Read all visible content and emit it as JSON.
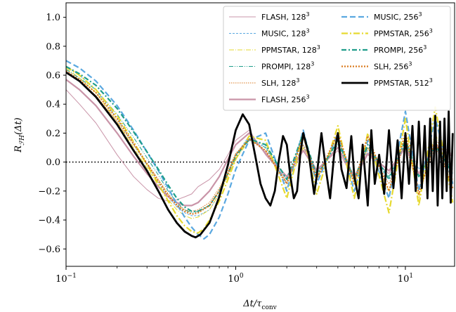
{
  "chart_data": {
    "type": "line",
    "title": "",
    "xlabel": "Δt/τ_conv",
    "ylabel": "R_FH(Δt)",
    "xscale": "log",
    "xlim": [
      0.1,
      19.5
    ],
    "ylim": [
      -0.72,
      1.1
    ],
    "xticks": [
      {
        "value": 0.1,
        "base": "10",
        "exp": "−1"
      },
      {
        "value": 1,
        "base": "10",
        "exp": "0"
      },
      {
        "value": 10,
        "base": "10",
        "exp": "1"
      }
    ],
    "yticks": [
      {
        "value": -0.6,
        "label": "−0.6"
      },
      {
        "value": -0.4,
        "label": "−0.4"
      },
      {
        "value": -0.2,
        "label": "−0.2"
      },
      {
        "value": 0.0,
        "label": "0.0"
      },
      {
        "value": 0.2,
        "label": "0.2"
      },
      {
        "value": 0.4,
        "label": "0.4"
      },
      {
        "value": 0.6,
        "label": "0.6"
      },
      {
        "value": 0.8,
        "label": "0.8"
      },
      {
        "value": 1.0,
        "label": "1.0"
      }
    ],
    "zero_line": {
      "y": 0.0,
      "style": "dotted",
      "color": "#000000"
    },
    "legend_position": "top-right",
    "series": [
      {
        "name": "FLASH, 128",
        "res_exp": "3",
        "color": "#c994a8",
        "dash": "",
        "width": 1,
        "x": [
          0.1,
          0.12,
          0.15,
          0.2,
          0.25,
          0.3,
          0.35,
          0.4,
          0.45,
          0.5,
          0.55,
          0.6,
          0.7,
          0.8,
          0.9,
          1.0,
          1.2,
          1.5,
          2.0,
          2.5,
          3.0,
          4.0,
          5.0,
          6.0,
          8.0,
          10.0,
          12.0,
          15.0,
          19.0
        ],
        "y": [
          0.5,
          0.4,
          0.27,
          0.05,
          -0.1,
          -0.19,
          -0.25,
          -0.27,
          -0.26,
          -0.24,
          -0.22,
          -0.17,
          -0.12,
          -0.05,
          0.05,
          0.15,
          0.22,
          0.05,
          -0.12,
          0.1,
          -0.05,
          0.08,
          -0.12,
          0.05,
          -0.08,
          0.12,
          -0.1,
          0.15,
          0.05
        ]
      },
      {
        "name": "MUSIC, 128",
        "res_exp": "3",
        "color": "#5aa8e0",
        "dash": "3,2",
        "width": 1,
        "x": [
          0.1,
          0.12,
          0.15,
          0.2,
          0.25,
          0.3,
          0.35,
          0.4,
          0.45,
          0.5,
          0.55,
          0.6,
          0.7,
          0.8,
          0.9,
          1.0,
          1.2,
          1.5,
          2.0,
          2.5,
          3.0,
          4.0,
          5.0,
          6.0,
          8.0,
          10.0,
          12.0,
          15.0,
          19.0
        ],
        "y": [
          0.66,
          0.6,
          0.5,
          0.3,
          0.12,
          -0.02,
          -0.14,
          -0.24,
          -0.31,
          -0.35,
          -0.37,
          -0.37,
          -0.33,
          -0.22,
          -0.08,
          0.05,
          0.18,
          0.1,
          -0.15,
          0.12,
          -0.08,
          0.15,
          -0.1,
          0.08,
          -0.12,
          0.15,
          -0.05,
          0.1,
          -0.08
        ]
      },
      {
        "name": "PPMSTAR, 128",
        "res_exp": "3",
        "color": "#e6d930",
        "dash": "7,2,1,2",
        "width": 1,
        "x": [
          0.1,
          0.12,
          0.15,
          0.2,
          0.25,
          0.3,
          0.35,
          0.4,
          0.45,
          0.5,
          0.55,
          0.6,
          0.7,
          0.8,
          0.9,
          1.0,
          1.2,
          1.5,
          2.0,
          2.5,
          3.0,
          4.0,
          5.0,
          6.0,
          8.0,
          10.0,
          12.0,
          15.0,
          19.0
        ],
        "y": [
          0.65,
          0.58,
          0.48,
          0.28,
          0.1,
          -0.04,
          -0.16,
          -0.26,
          -0.33,
          -0.37,
          -0.39,
          -0.38,
          -0.33,
          -0.22,
          -0.1,
          0.02,
          0.15,
          0.12,
          -0.18,
          0.1,
          -0.12,
          0.18,
          -0.15,
          0.1,
          -0.2,
          0.18,
          -0.25,
          0.2,
          -0.15
        ]
      },
      {
        "name": "PROMPI, 128",
        "res_exp": "3",
        "color": "#1f9d8a",
        "dash": "6,2,1,2,1,2",
        "width": 1,
        "x": [
          0.1,
          0.12,
          0.15,
          0.2,
          0.25,
          0.3,
          0.35,
          0.4,
          0.45,
          0.5,
          0.55,
          0.6,
          0.7,
          0.8,
          0.9,
          1.0,
          1.2,
          1.5,
          2.0,
          2.5,
          3.0,
          4.0,
          5.0,
          6.0,
          8.0,
          10.0,
          12.0,
          15.0,
          19.0
        ],
        "y": [
          0.64,
          0.58,
          0.5,
          0.33,
          0.17,
          0.03,
          -0.09,
          -0.2,
          -0.28,
          -0.33,
          -0.35,
          -0.34,
          -0.3,
          -0.2,
          -0.08,
          0.05,
          0.15,
          0.1,
          -0.12,
          0.18,
          -0.08,
          0.12,
          -0.1,
          0.1,
          -0.1,
          0.12,
          -0.08,
          0.1,
          -0.05
        ]
      },
      {
        "name": "SLH, 128",
        "res_exp": "3",
        "color": "#d97a1f",
        "dash": "1.5,1.5",
        "width": 1,
        "x": [
          0.1,
          0.12,
          0.15,
          0.2,
          0.25,
          0.3,
          0.35,
          0.4,
          0.45,
          0.5,
          0.55,
          0.6,
          0.7,
          0.8,
          0.9,
          1.0,
          1.2,
          1.5,
          2.0,
          2.5,
          3.0,
          4.0,
          5.0,
          6.0,
          8.0,
          10.0,
          12.0,
          15.0,
          19.0
        ],
        "y": [
          0.62,
          0.56,
          0.46,
          0.28,
          0.12,
          -0.01,
          -0.12,
          -0.22,
          -0.29,
          -0.33,
          -0.34,
          -0.33,
          -0.28,
          -0.18,
          -0.06,
          0.06,
          0.16,
          0.08,
          -0.14,
          0.12,
          -0.1,
          0.15,
          -0.12,
          0.1,
          -0.15,
          0.12,
          -0.18,
          0.1,
          -0.12
        ]
      },
      {
        "name": "FLASH, 256",
        "res_exp": "3",
        "color": "#c994a8",
        "dash": "",
        "width": 2.2,
        "x": [
          0.1,
          0.12,
          0.15,
          0.2,
          0.25,
          0.3,
          0.35,
          0.4,
          0.45,
          0.5,
          0.55,
          0.6,
          0.7,
          0.8,
          0.9,
          1.0,
          1.2,
          1.5,
          2.0,
          2.5,
          3.0,
          4.0,
          5.0,
          6.0,
          8.0,
          10.0,
          12.0,
          15.0,
          19.0
        ],
        "y": [
          0.57,
          0.5,
          0.39,
          0.2,
          0.04,
          -0.08,
          -0.17,
          -0.24,
          -0.28,
          -0.3,
          -0.3,
          -0.28,
          -0.2,
          -0.1,
          0.02,
          0.12,
          0.2,
          0.06,
          -0.1,
          0.08,
          -0.06,
          0.1,
          -0.1,
          0.06,
          -0.06,
          0.1,
          -0.08,
          0.12,
          0.04
        ]
      },
      {
        "name": "MUSIC, 256",
        "res_exp": "3",
        "color": "#5aa8e0",
        "dash": "8,4",
        "width": 2.2,
        "x": [
          0.1,
          0.12,
          0.15,
          0.2,
          0.25,
          0.3,
          0.35,
          0.4,
          0.45,
          0.5,
          0.55,
          0.6,
          0.65,
          0.7,
          0.8,
          0.9,
          1.0,
          1.2,
          1.5,
          2.0,
          2.5,
          3.0,
          4.0,
          5.0,
          6.0,
          8.0,
          10.0,
          12.0,
          15.0,
          19.0
        ],
        "y": [
          0.7,
          0.65,
          0.56,
          0.39,
          0.22,
          0.07,
          -0.06,
          -0.18,
          -0.29,
          -0.38,
          -0.45,
          -0.5,
          -0.53,
          -0.5,
          -0.38,
          -0.22,
          -0.05,
          0.15,
          0.2,
          -0.2,
          0.22,
          -0.15,
          0.2,
          -0.2,
          0.15,
          -0.25,
          0.35,
          -0.2,
          0.3,
          -0.15
        ]
      },
      {
        "name": "PPMSTAR, 256",
        "res_exp": "3",
        "color": "#e6d930",
        "dash": "9,3,2,3",
        "width": 2.2,
        "x": [
          0.1,
          0.12,
          0.15,
          0.2,
          0.25,
          0.3,
          0.35,
          0.4,
          0.45,
          0.5,
          0.55,
          0.6,
          0.65,
          0.7,
          0.8,
          0.9,
          1.0,
          1.2,
          1.5,
          2.0,
          2.5,
          3.0,
          4.0,
          5.0,
          6.0,
          8.0,
          10.0,
          12.0,
          15.0,
          19.0
        ],
        "y": [
          0.66,
          0.6,
          0.5,
          0.32,
          0.14,
          -0.02,
          -0.15,
          -0.27,
          -0.37,
          -0.44,
          -0.48,
          -0.49,
          -0.46,
          -0.4,
          -0.27,
          -0.12,
          0.02,
          0.18,
          0.15,
          -0.25,
          0.2,
          -0.22,
          0.25,
          -0.25,
          0.2,
          -0.35,
          0.3,
          -0.3,
          0.38,
          -0.28
        ]
      },
      {
        "name": "PROMPI, 256",
        "res_exp": "3",
        "color": "#1f9d8a",
        "dash": "7,3,2,3",
        "width": 2.2,
        "x": [
          0.1,
          0.12,
          0.15,
          0.2,
          0.25,
          0.3,
          0.35,
          0.4,
          0.45,
          0.5,
          0.55,
          0.6,
          0.7,
          0.8,
          0.9,
          1.0,
          1.2,
          1.5,
          2.0,
          2.5,
          3.0,
          4.0,
          5.0,
          6.0,
          8.0,
          10.0,
          12.0,
          15.0,
          19.0
        ],
        "y": [
          0.66,
          0.61,
          0.53,
          0.37,
          0.21,
          0.07,
          -0.05,
          -0.16,
          -0.25,
          -0.31,
          -0.34,
          -0.34,
          -0.3,
          -0.2,
          -0.08,
          0.04,
          0.16,
          0.12,
          -0.12,
          0.2,
          -0.1,
          0.15,
          -0.12,
          0.12,
          -0.12,
          0.15,
          -0.1,
          0.12,
          -0.08
        ]
      },
      {
        "name": "SLH, 256",
        "res_exp": "3",
        "color": "#d97a1f",
        "dash": "2,2",
        "width": 2.2,
        "x": [
          0.1,
          0.12,
          0.15,
          0.2,
          0.25,
          0.3,
          0.35,
          0.4,
          0.45,
          0.5,
          0.55,
          0.6,
          0.7,
          0.8,
          0.9,
          1.0,
          1.2,
          1.5,
          2.0,
          2.5,
          3.0,
          4.0,
          5.0,
          6.0,
          8.0,
          10.0,
          12.0,
          15.0,
          19.0
        ],
        "y": [
          0.63,
          0.57,
          0.48,
          0.3,
          0.13,
          -0.01,
          -0.13,
          -0.23,
          -0.3,
          -0.34,
          -0.36,
          -0.35,
          -0.3,
          -0.2,
          -0.08,
          0.05,
          0.16,
          0.08,
          -0.15,
          0.18,
          -0.12,
          0.2,
          -0.15,
          0.18,
          -0.2,
          0.2,
          -0.22,
          0.15,
          -0.18
        ]
      },
      {
        "name": "PPMSTAR, 512",
        "res_exp": "3",
        "color": "#000000",
        "dash": "",
        "width": 2.8,
        "x": [
          0.1,
          0.12,
          0.15,
          0.2,
          0.25,
          0.3,
          0.35,
          0.4,
          0.45,
          0.5,
          0.55,
          0.58,
          0.62,
          0.7,
          0.8,
          0.9,
          1.0,
          1.1,
          1.2,
          1.3,
          1.4,
          1.5,
          1.6,
          1.7,
          1.8,
          1.9,
          2.0,
          2.1,
          2.2,
          2.3,
          2.4,
          2.5,
          2.7,
          2.9,
          3.0,
          3.2,
          3.4,
          3.6,
          3.8,
          4.0,
          4.2,
          4.5,
          4.8,
          5.0,
          5.3,
          5.6,
          6.0,
          6.3,
          6.6,
          7.0,
          7.5,
          8.0,
          8.5,
          9.0,
          9.5,
          10.0,
          10.5,
          11.0,
          11.5,
          12.0,
          12.5,
          13.0,
          13.5,
          14.0,
          14.5,
          15.0,
          15.5,
          16.0,
          16.5,
          17.0,
          17.5,
          18.0,
          18.5,
          19.0
        ],
        "y": [
          0.62,
          0.56,
          0.45,
          0.26,
          0.08,
          -0.06,
          -0.2,
          -0.33,
          -0.42,
          -0.48,
          -0.51,
          -0.52,
          -0.5,
          -0.42,
          -0.24,
          -0.02,
          0.22,
          0.33,
          0.26,
          0.05,
          -0.15,
          -0.25,
          -0.3,
          -0.2,
          0.02,
          0.18,
          0.12,
          -0.1,
          -0.25,
          -0.2,
          0.05,
          0.2,
          0.05,
          -0.22,
          -0.1,
          0.2,
          -0.05,
          -0.25,
          0.05,
          0.2,
          -0.05,
          -0.18,
          0.18,
          -0.1,
          -0.25,
          0.12,
          -0.3,
          0.22,
          -0.15,
          0.05,
          -0.22,
          0.22,
          -0.18,
          0.15,
          -0.25,
          0.2,
          -0.15,
          0.25,
          -0.2,
          0.28,
          -0.18,
          0.25,
          -0.25,
          0.3,
          -0.2,
          0.32,
          -0.3,
          0.28,
          -0.25,
          0.3,
          -0.2,
          0.35,
          -0.28,
          0.2
        ]
      }
    ]
  }
}
